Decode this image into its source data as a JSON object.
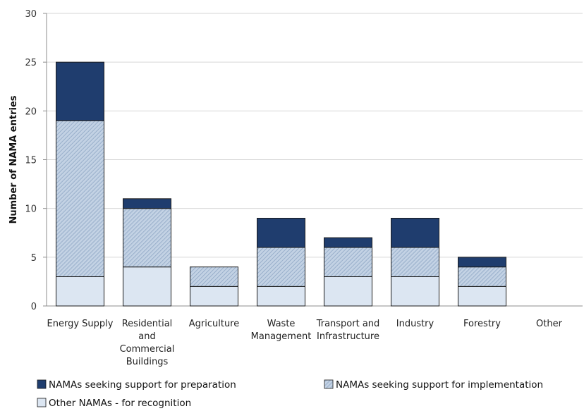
{
  "chart_data": {
    "type": "bar",
    "stacked": true,
    "ylabel": "Number of NAMA entries",
    "ylim": [
      0,
      30
    ],
    "yticks": [
      0,
      5,
      10,
      15,
      20,
      25,
      30
    ],
    "grid": true,
    "categories": [
      [
        "Energy Supply"
      ],
      [
        "Residential",
        "and",
        "Commercial",
        "Buildings"
      ],
      [
        "Agriculture"
      ],
      [
        "Waste",
        "Management"
      ],
      [
        "Transport and",
        "Infrastructure"
      ],
      [
        "Industry"
      ],
      [
        "Forestry"
      ],
      [
        "Other"
      ]
    ],
    "series": [
      {
        "name": "Other NAMAs - for recognition",
        "color": "#dce6f2",
        "pattern": "none",
        "values": [
          3,
          4,
          2,
          2,
          3,
          3,
          2,
          0
        ]
      },
      {
        "name": "NAMAs seeking support for implementation",
        "color": "#9db3cf",
        "pattern": "hatch",
        "values": [
          16,
          6,
          2,
          4,
          3,
          3,
          2,
          0
        ]
      },
      {
        "name": "NAMAs seeking support for preparation",
        "color": "#1f3d6e",
        "pattern": "none",
        "values": [
          6,
          1,
          0,
          3,
          1,
          3,
          1,
          0
        ]
      }
    ],
    "legend": {
      "placement": "bottom",
      "order": [
        2,
        1,
        0
      ]
    }
  }
}
